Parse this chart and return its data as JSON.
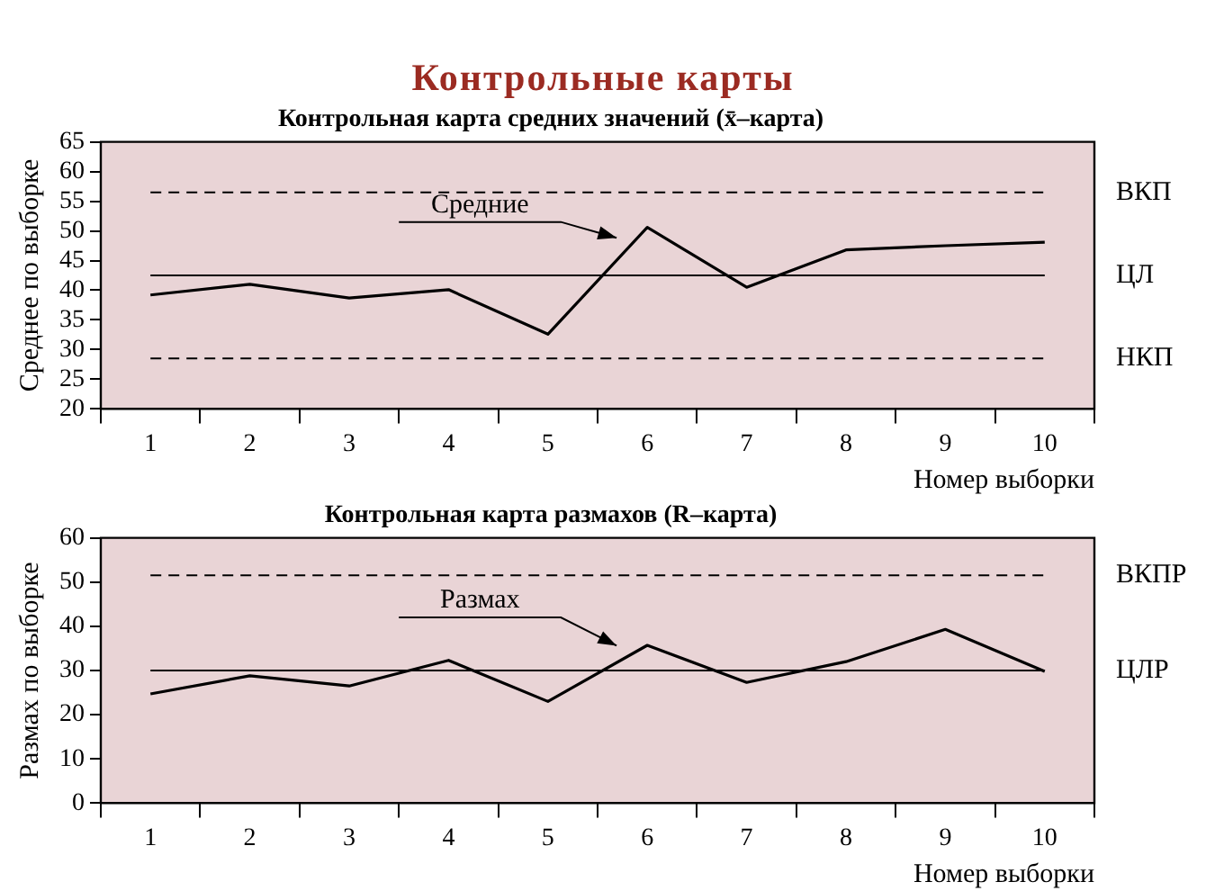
{
  "chart_data": [
    {
      "type": "line",
      "title": "Контрольные карты",
      "subtitle": "Контрольная карта средних значений (x̄–карта)",
      "xlabel": "Номер выборки",
      "ylabel": "Среднее по выборке",
      "categories": [
        "1",
        "2",
        "3",
        "4",
        "5",
        "6",
        "7",
        "8",
        "9",
        "10"
      ],
      "series": [
        {
          "color": "#000000",
          "values": [
            39.2,
            41,
            38.7,
            40.1,
            32.6,
            50.6,
            40.5,
            46.8,
            47.5,
            48.1
          ]
        }
      ],
      "ylim": [
        20,
        65
      ],
      "yticks": [
        20,
        25,
        30,
        35,
        40,
        45,
        50,
        55,
        60,
        65
      ],
      "grid": false,
      "legend": false,
      "marker": "none",
      "ref_lines": [
        {
          "axis": "y",
          "value": 56.5,
          "label": "ВКП",
          "color": "#000000",
          "line_style": "dashed"
        },
        {
          "axis": "y",
          "value": 42.5,
          "label": "ЦЛ",
          "color": "#000000",
          "line_style": "solid"
        },
        {
          "axis": "y",
          "value": 28.5,
          "label": "НКП",
          "color": "#000000",
          "line_style": "dashed"
        }
      ],
      "annotations": [
        "Средние"
      ]
    },
    {
      "type": "line",
      "title": "Контрольная карта размахов (R–карта)",
      "xlabel": "Номер выборки",
      "ylabel": "Размах по выборке",
      "categories": [
        "1",
        "2",
        "3",
        "4",
        "5",
        "6",
        "7",
        "8",
        "9",
        "10"
      ],
      "series": [
        {
          "color": "#000000",
          "values": [
            24.7,
            28.8,
            26.5,
            32.3,
            23,
            35.7,
            27.3,
            32,
            39.3,
            29.8
          ]
        }
      ],
      "ylim": [
        0,
        60
      ],
      "yticks": [
        0,
        10,
        20,
        30,
        40,
        50,
        60
      ],
      "grid": false,
      "legend": false,
      "marker": "none",
      "ref_lines": [
        {
          "axis": "y",
          "value": 51.5,
          "label": "ВКПР",
          "color": "#000000",
          "line_style": "dashed"
        },
        {
          "axis": "y",
          "value": 30,
          "label": "ЦЛР",
          "color": "#000000",
          "line_style": "solid"
        }
      ],
      "annotations": [
        "Размах"
      ]
    }
  ]
}
